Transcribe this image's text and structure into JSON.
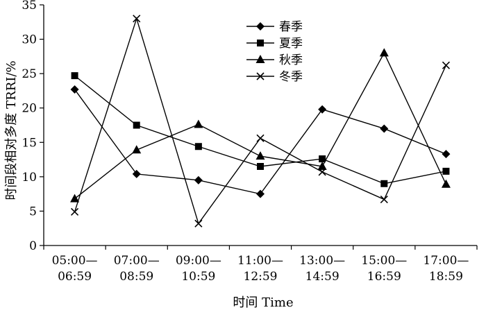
{
  "chart_data": {
    "type": "line",
    "xlabel": "时间 Time",
    "ylabel": "时间段相对多度 TRRI/%",
    "ylim": [
      0,
      35
    ],
    "yticks": [
      0,
      5,
      10,
      15,
      20,
      25,
      30,
      35
    ],
    "grid": false,
    "legend_position": "top-right",
    "categories": [
      [
        "05:00—",
        "06:59"
      ],
      [
        "07:00—",
        "08:59"
      ],
      [
        "09:00—",
        "10:59"
      ],
      [
        "11:00—",
        "12:59"
      ],
      [
        "13:00—",
        "14:59"
      ],
      [
        "15:00—",
        "16:59"
      ],
      [
        "17:00—",
        "18:59"
      ]
    ],
    "series": [
      {
        "name": "春季",
        "marker": "diamond",
        "values": [
          22.7,
          10.4,
          9.5,
          7.5,
          19.8,
          17.0,
          13.3
        ]
      },
      {
        "name": "夏季",
        "marker": "square",
        "values": [
          24.7,
          17.5,
          14.4,
          11.5,
          12.6,
          9.0,
          10.8
        ]
      },
      {
        "name": "秋季",
        "marker": "triangle",
        "values": [
          6.8,
          13.9,
          17.6,
          13.0,
          11.5,
          28.0,
          8.9
        ]
      },
      {
        "name": "冬季",
        "marker": "x",
        "values": [
          4.9,
          33.0,
          3.2,
          15.6,
          10.7,
          6.7,
          26.2
        ]
      }
    ]
  }
}
